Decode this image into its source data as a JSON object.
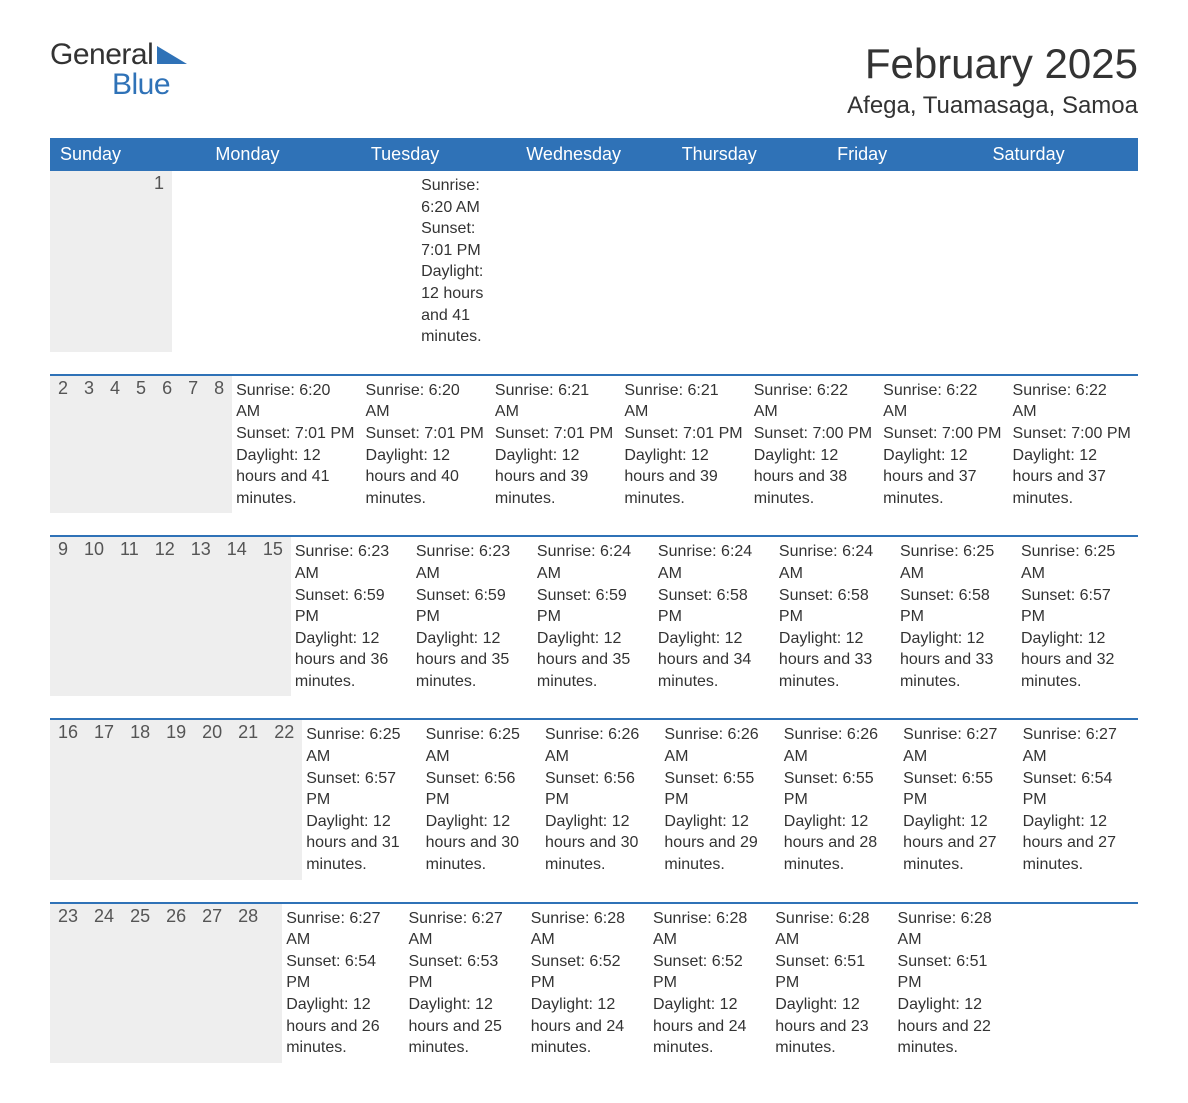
{
  "brand": {
    "line1": "General",
    "line2": "Blue"
  },
  "title": "February 2025",
  "location": "Afega, Tuamasaga, Samoa",
  "colors": {
    "header_bg": "#2f72b7",
    "header_text": "#ffffff",
    "cell_header_bg": "#eeeeee",
    "text": "#333333",
    "accent": "#2f72b7",
    "page_bg": "#ffffff"
  },
  "typography": {
    "title_fontsize": 42,
    "location_fontsize": 24,
    "dayheader_fontsize": 18,
    "daynum_fontsize": 18,
    "body_fontsize": 16,
    "font_family": "Segoe UI"
  },
  "dayHeaders": [
    "Sunday",
    "Monday",
    "Tuesday",
    "Wednesday",
    "Thursday",
    "Friday",
    "Saturday"
  ],
  "labels": {
    "sunrise_prefix": "Sunrise: ",
    "sunset_prefix": "Sunset: ",
    "daylight_prefix": "Daylight: ",
    "daylight_mid": " hours and ",
    "daylight_suffix": " minutes."
  },
  "weeks": [
    [
      null,
      null,
      null,
      null,
      null,
      null,
      {
        "d": "1",
        "sunrise": "6:20 AM",
        "sunset": "7:01 PM",
        "dl_h": "12",
        "dl_m": "41"
      }
    ],
    [
      {
        "d": "2",
        "sunrise": "6:20 AM",
        "sunset": "7:01 PM",
        "dl_h": "12",
        "dl_m": "41"
      },
      {
        "d": "3",
        "sunrise": "6:20 AM",
        "sunset": "7:01 PM",
        "dl_h": "12",
        "dl_m": "40"
      },
      {
        "d": "4",
        "sunrise": "6:21 AM",
        "sunset": "7:01 PM",
        "dl_h": "12",
        "dl_m": "39"
      },
      {
        "d": "5",
        "sunrise": "6:21 AM",
        "sunset": "7:01 PM",
        "dl_h": "12",
        "dl_m": "39"
      },
      {
        "d": "6",
        "sunrise": "6:22 AM",
        "sunset": "7:00 PM",
        "dl_h": "12",
        "dl_m": "38"
      },
      {
        "d": "7",
        "sunrise": "6:22 AM",
        "sunset": "7:00 PM",
        "dl_h": "12",
        "dl_m": "37"
      },
      {
        "d": "8",
        "sunrise": "6:22 AM",
        "sunset": "7:00 PM",
        "dl_h": "12",
        "dl_m": "37"
      }
    ],
    [
      {
        "d": "9",
        "sunrise": "6:23 AM",
        "sunset": "6:59 PM",
        "dl_h": "12",
        "dl_m": "36"
      },
      {
        "d": "10",
        "sunrise": "6:23 AM",
        "sunset": "6:59 PM",
        "dl_h": "12",
        "dl_m": "35"
      },
      {
        "d": "11",
        "sunrise": "6:24 AM",
        "sunset": "6:59 PM",
        "dl_h": "12",
        "dl_m": "35"
      },
      {
        "d": "12",
        "sunrise": "6:24 AM",
        "sunset": "6:58 PM",
        "dl_h": "12",
        "dl_m": "34"
      },
      {
        "d": "13",
        "sunrise": "6:24 AM",
        "sunset": "6:58 PM",
        "dl_h": "12",
        "dl_m": "33"
      },
      {
        "d": "14",
        "sunrise": "6:25 AM",
        "sunset": "6:58 PM",
        "dl_h": "12",
        "dl_m": "33"
      },
      {
        "d": "15",
        "sunrise": "6:25 AM",
        "sunset": "6:57 PM",
        "dl_h": "12",
        "dl_m": "32"
      }
    ],
    [
      {
        "d": "16",
        "sunrise": "6:25 AM",
        "sunset": "6:57 PM",
        "dl_h": "12",
        "dl_m": "31"
      },
      {
        "d": "17",
        "sunrise": "6:25 AM",
        "sunset": "6:56 PM",
        "dl_h": "12",
        "dl_m": "30"
      },
      {
        "d": "18",
        "sunrise": "6:26 AM",
        "sunset": "6:56 PM",
        "dl_h": "12",
        "dl_m": "30"
      },
      {
        "d": "19",
        "sunrise": "6:26 AM",
        "sunset": "6:55 PM",
        "dl_h": "12",
        "dl_m": "29"
      },
      {
        "d": "20",
        "sunrise": "6:26 AM",
        "sunset": "6:55 PM",
        "dl_h": "12",
        "dl_m": "28"
      },
      {
        "d": "21",
        "sunrise": "6:27 AM",
        "sunset": "6:55 PM",
        "dl_h": "12",
        "dl_m": "27"
      },
      {
        "d": "22",
        "sunrise": "6:27 AM",
        "sunset": "6:54 PM",
        "dl_h": "12",
        "dl_m": "27"
      }
    ],
    [
      {
        "d": "23",
        "sunrise": "6:27 AM",
        "sunset": "6:54 PM",
        "dl_h": "12",
        "dl_m": "26"
      },
      {
        "d": "24",
        "sunrise": "6:27 AM",
        "sunset": "6:53 PM",
        "dl_h": "12",
        "dl_m": "25"
      },
      {
        "d": "25",
        "sunrise": "6:28 AM",
        "sunset": "6:52 PM",
        "dl_h": "12",
        "dl_m": "24"
      },
      {
        "d": "26",
        "sunrise": "6:28 AM",
        "sunset": "6:52 PM",
        "dl_h": "12",
        "dl_m": "24"
      },
      {
        "d": "27",
        "sunrise": "6:28 AM",
        "sunset": "6:51 PM",
        "dl_h": "12",
        "dl_m": "23"
      },
      {
        "d": "28",
        "sunrise": "6:28 AM",
        "sunset": "6:51 PM",
        "dl_h": "12",
        "dl_m": "22"
      },
      null
    ]
  ]
}
